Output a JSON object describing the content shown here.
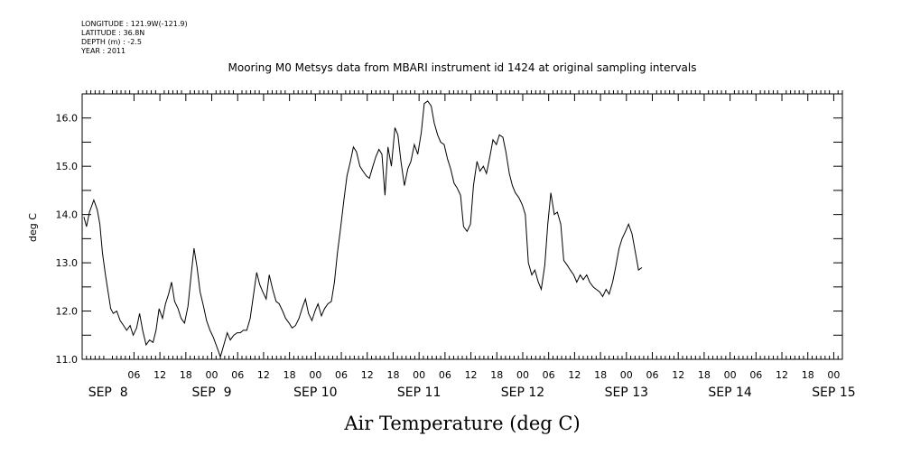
{
  "meta_lines": [
    "LONGITUDE : 121.9W(-121.9)",
    "LATITUDE : 36.8N",
    "DEPTH (m) : -2.5",
    "YEAR : 2011"
  ],
  "chart_data": {
    "type": "line",
    "title": "Mooring M0 Metsys data from MBARI instrument id 1424 at original sampling intervals",
    "xlabel": "Air Temperature (deg C)",
    "ylabel": "deg C",
    "ylim": [
      11.0,
      16.5
    ],
    "yticks": [
      11.0,
      12.0,
      13.0,
      14.0,
      15.0,
      16.0
    ],
    "ytick_labels": [
      "11.0",
      "12.0",
      "13.0",
      "14.0",
      "15.0",
      "16.0"
    ],
    "x_unit": "hours since 00 SEP 8 2011",
    "xlim": [
      -6,
      170
    ],
    "hour_ticks": [
      {
        "t": 6,
        "label": "06"
      },
      {
        "t": 12,
        "label": "12"
      },
      {
        "t": 18,
        "label": "18"
      },
      {
        "t": 24,
        "label": "00"
      },
      {
        "t": 30,
        "label": "06"
      },
      {
        "t": 36,
        "label": "12"
      },
      {
        "t": 42,
        "label": "18"
      },
      {
        "t": 48,
        "label": "00"
      },
      {
        "t": 54,
        "label": "06"
      },
      {
        "t": 60,
        "label": "12"
      },
      {
        "t": 66,
        "label": "18"
      },
      {
        "t": 72,
        "label": "00"
      },
      {
        "t": 78,
        "label": "06"
      },
      {
        "t": 84,
        "label": "12"
      },
      {
        "t": 90,
        "label": "18"
      },
      {
        "t": 96,
        "label": "00"
      },
      {
        "t": 102,
        "label": "06"
      },
      {
        "t": 108,
        "label": "12"
      },
      {
        "t": 114,
        "label": "18"
      },
      {
        "t": 120,
        "label": "00"
      },
      {
        "t": 126,
        "label": "06"
      },
      {
        "t": 132,
        "label": "12"
      },
      {
        "t": 138,
        "label": "18"
      },
      {
        "t": 144,
        "label": "00"
      },
      {
        "t": 150,
        "label": "06"
      },
      {
        "t": 156,
        "label": "12"
      },
      {
        "t": 162,
        "label": "18"
      },
      {
        "t": 168,
        "label": "00"
      }
    ],
    "day_labels": [
      {
        "t": 0,
        "label": "SEP  8"
      },
      {
        "t": 24,
        "label": "SEP  9"
      },
      {
        "t": 48,
        "label": "SEP 10"
      },
      {
        "t": 72,
        "label": "SEP 11"
      },
      {
        "t": 96,
        "label": "SEP 12"
      },
      {
        "t": 120,
        "label": "SEP 13"
      },
      {
        "t": 144,
        "label": "SEP 14"
      },
      {
        "t": 168,
        "label": "SEP 15"
      }
    ],
    "series": [
      {
        "color": "#000000",
        "points": [
          [
            -5.6,
            13.95
          ],
          [
            -5.0,
            13.75
          ],
          [
            -4.3,
            14.05
          ],
          [
            -3.3,
            14.3
          ],
          [
            -2.5,
            14.1
          ],
          [
            -1.9,
            13.8
          ],
          [
            -1.3,
            13.2
          ],
          [
            -0.6,
            12.75
          ],
          [
            0.0,
            12.4
          ],
          [
            0.6,
            12.05
          ],
          [
            1.2,
            11.95
          ],
          [
            2.0,
            12.0
          ],
          [
            2.8,
            11.8
          ],
          [
            3.6,
            11.7
          ],
          [
            4.3,
            11.6
          ],
          [
            5.1,
            11.7
          ],
          [
            5.8,
            11.5
          ],
          [
            6.6,
            11.65
          ],
          [
            7.3,
            11.95
          ],
          [
            8.0,
            11.6
          ],
          [
            8.8,
            11.3
          ],
          [
            9.6,
            11.4
          ],
          [
            10.4,
            11.35
          ],
          [
            11.1,
            11.6
          ],
          [
            11.8,
            12.05
          ],
          [
            12.6,
            11.85
          ],
          [
            13.3,
            12.15
          ],
          [
            14.0,
            12.35
          ],
          [
            14.7,
            12.6
          ],
          [
            15.4,
            12.2
          ],
          [
            16.2,
            12.05
          ],
          [
            16.9,
            11.85
          ],
          [
            17.7,
            11.75
          ],
          [
            18.5,
            12.1
          ],
          [
            19.3,
            12.8
          ],
          [
            19.9,
            13.3
          ],
          [
            20.6,
            12.9
          ],
          [
            21.3,
            12.4
          ],
          [
            22.1,
            12.1
          ],
          [
            22.8,
            11.8
          ],
          [
            23.6,
            11.6
          ],
          [
            24.4,
            11.45
          ],
          [
            25.2,
            11.25
          ],
          [
            26.0,
            11.05
          ],
          [
            26.8,
            11.3
          ],
          [
            27.6,
            11.55
          ],
          [
            28.3,
            11.4
          ],
          [
            29.1,
            11.5
          ],
          [
            29.9,
            11.55
          ],
          [
            30.6,
            11.55
          ],
          [
            31.3,
            11.6
          ],
          [
            32.1,
            11.6
          ],
          [
            32.9,
            11.85
          ],
          [
            33.6,
            12.3
          ],
          [
            34.4,
            12.8
          ],
          [
            35.1,
            12.55
          ],
          [
            35.8,
            12.4
          ],
          [
            36.6,
            12.25
          ],
          [
            37.3,
            12.75
          ],
          [
            38.1,
            12.45
          ],
          [
            38.9,
            12.2
          ],
          [
            39.6,
            12.15
          ],
          [
            40.4,
            12.0
          ],
          [
            41.1,
            11.85
          ],
          [
            41.9,
            11.75
          ],
          [
            42.6,
            11.65
          ],
          [
            43.4,
            11.7
          ],
          [
            44.2,
            11.85
          ],
          [
            44.9,
            12.05
          ],
          [
            45.7,
            12.25
          ],
          [
            46.4,
            11.95
          ],
          [
            47.2,
            11.8
          ],
          [
            47.9,
            12.0
          ],
          [
            48.6,
            12.15
          ],
          [
            49.4,
            11.9
          ],
          [
            50.1,
            12.05
          ],
          [
            50.9,
            12.15
          ],
          [
            51.7,
            12.2
          ],
          [
            52.4,
            12.6
          ],
          [
            53.1,
            13.2
          ],
          [
            53.8,
            13.7
          ],
          [
            54.6,
            14.3
          ],
          [
            55.3,
            14.8
          ],
          [
            56.1,
            15.1
          ],
          [
            56.8,
            15.4
          ],
          [
            57.5,
            15.3
          ],
          [
            58.3,
            15.0
          ],
          [
            59.0,
            14.9
          ],
          [
            59.8,
            14.8
          ],
          [
            60.5,
            14.75
          ],
          [
            61.3,
            15.0
          ],
          [
            62.0,
            15.2
          ],
          [
            62.7,
            15.35
          ],
          [
            63.4,
            15.25
          ],
          [
            64.1,
            14.4
          ],
          [
            64.8,
            15.4
          ],
          [
            65.6,
            15.0
          ],
          [
            66.4,
            15.8
          ],
          [
            67.1,
            15.65
          ],
          [
            67.8,
            15.1
          ],
          [
            68.6,
            14.6
          ],
          [
            69.4,
            14.95
          ],
          [
            70.1,
            15.1
          ],
          [
            70.9,
            15.45
          ],
          [
            71.7,
            15.25
          ],
          [
            72.5,
            15.7
          ],
          [
            73.2,
            16.3
          ],
          [
            74.0,
            16.35
          ],
          [
            74.8,
            16.25
          ],
          [
            75.5,
            15.9
          ],
          [
            76.3,
            15.65
          ],
          [
            77.0,
            15.5
          ],
          [
            77.8,
            15.45
          ],
          [
            78.6,
            15.15
          ],
          [
            79.3,
            14.95
          ],
          [
            80.1,
            14.65
          ],
          [
            80.8,
            14.55
          ],
          [
            81.6,
            14.4
          ],
          [
            82.3,
            13.75
          ],
          [
            83.1,
            13.65
          ],
          [
            83.9,
            13.8
          ],
          [
            84.6,
            14.6
          ],
          [
            85.4,
            15.1
          ],
          [
            86.1,
            14.9
          ],
          [
            86.9,
            15.0
          ],
          [
            87.6,
            14.85
          ],
          [
            88.4,
            15.2
          ],
          [
            89.1,
            15.55
          ],
          [
            89.9,
            15.45
          ],
          [
            90.6,
            15.65
          ],
          [
            91.4,
            15.6
          ],
          [
            92.1,
            15.3
          ],
          [
            92.9,
            14.85
          ],
          [
            93.6,
            14.6
          ],
          [
            94.3,
            14.45
          ],
          [
            95.1,
            14.35
          ],
          [
            95.9,
            14.2
          ],
          [
            96.6,
            14.0
          ],
          [
            97.3,
            13.0
          ],
          [
            98.1,
            12.75
          ],
          [
            98.8,
            12.85
          ],
          [
            99.6,
            12.6
          ],
          [
            100.3,
            12.45
          ],
          [
            101.1,
            12.95
          ],
          [
            101.8,
            13.8
          ],
          [
            102.5,
            14.45
          ],
          [
            103.3,
            14.0
          ],
          [
            104.0,
            14.05
          ],
          [
            104.8,
            13.8
          ],
          [
            105.5,
            13.05
          ],
          [
            106.3,
            12.95
          ],
          [
            107.0,
            12.85
          ],
          [
            107.8,
            12.75
          ],
          [
            108.5,
            12.6
          ],
          [
            109.3,
            12.75
          ],
          [
            110.0,
            12.65
          ],
          [
            110.8,
            12.75
          ],
          [
            111.5,
            12.6
          ],
          [
            112.3,
            12.5
          ],
          [
            113.0,
            12.45
          ],
          [
            113.8,
            12.4
          ],
          [
            114.5,
            12.3
          ],
          [
            115.3,
            12.45
          ],
          [
            116.0,
            12.35
          ],
          [
            116.8,
            12.6
          ],
          [
            117.5,
            12.9
          ],
          [
            118.3,
            13.3
          ],
          [
            119.0,
            13.5
          ],
          [
            119.8,
            13.65
          ],
          [
            120.5,
            13.8
          ],
          [
            121.3,
            13.6
          ],
          [
            122.0,
            13.25
          ],
          [
            122.8,
            12.85
          ],
          [
            123.6,
            12.9
          ]
        ]
      }
    ]
  }
}
